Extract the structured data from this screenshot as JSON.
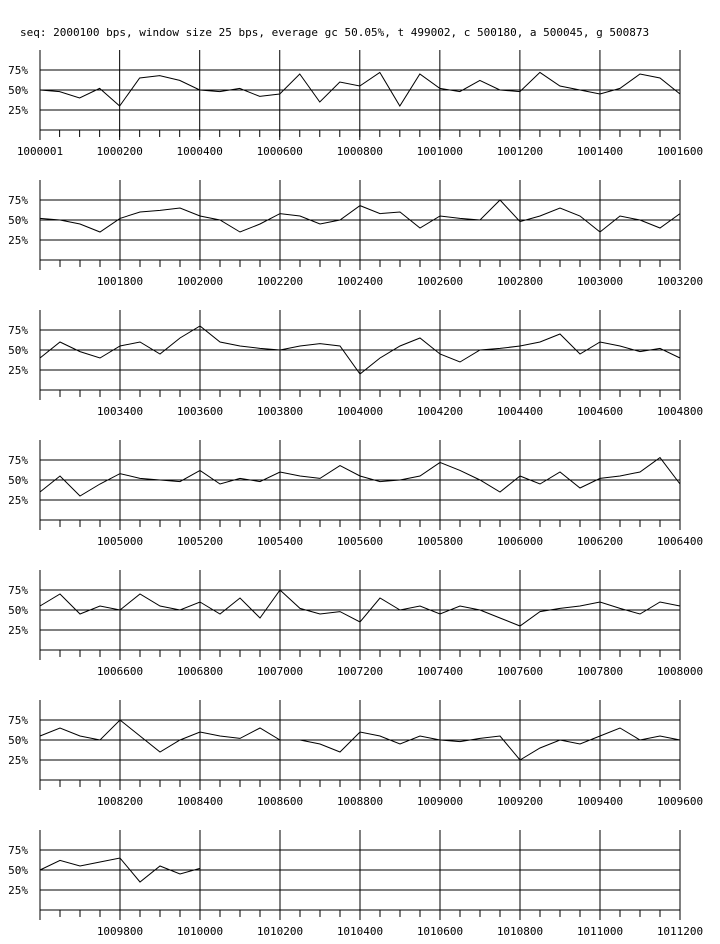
{
  "title": "seq: 2000100 bps, window size 25 bps, everage gc 50.05%, t 499002, c 500180, a 500045, g 500873",
  "chart_data": [
    {
      "type": "line",
      "xlim": [
        1000001,
        1001600
      ],
      "ylim": [
        0,
        100
      ],
      "xticks": [
        1000001,
        1000200,
        1000400,
        1000600,
        1000800,
        1001000,
        1001200,
        1001400,
        1001600
      ],
      "yticks": [
        {
          "value": 25,
          "label": "25%"
        },
        {
          "value": 50,
          "label": "50%"
        },
        {
          "value": 75,
          "label": "75%"
        }
      ],
      "grid": true,
      "series": [
        {
          "color": "#000000",
          "x": [
            1000001,
            1000050,
            1000100,
            1000150,
            1000200,
            1000250,
            1000300,
            1000350,
            1000400,
            1000450,
            1000500,
            1000550,
            1000600,
            1000650,
            1000700,
            1000750,
            1000800,
            1000850,
            1000900,
            1000950,
            1001000,
            1001050,
            1001100,
            1001150,
            1001200,
            1001250,
            1001300,
            1001350,
            1001400,
            1001450,
            1001500,
            1001550,
            1001600
          ],
          "values": [
            50,
            48,
            40,
            52,
            30,
            65,
            68,
            62,
            50,
            48,
            52,
            42,
            45,
            70,
            35,
            60,
            55,
            72,
            30,
            70,
            52,
            48,
            62,
            50,
            48,
            72,
            55,
            50,
            45,
            52,
            70,
            65,
            45
          ]
        }
      ]
    },
    {
      "type": "line",
      "xlim": [
        1001600,
        1003200
      ],
      "ylim": [
        0,
        100
      ],
      "xticks": [
        1001800,
        1002000,
        1002200,
        1002400,
        1002600,
        1002800,
        1003000,
        1003200
      ],
      "yticks": [
        {
          "value": 25,
          "label": "25%"
        },
        {
          "value": 50,
          "label": "50%"
        },
        {
          "value": 75,
          "label": "75%"
        }
      ],
      "grid": true,
      "series": [
        {
          "color": "#000000",
          "x": [
            1001600,
            1001650,
            1001700,
            1001750,
            1001800,
            1001850,
            1001900,
            1001950,
            1002000,
            1002050,
            1002100,
            1002150,
            1002200,
            1002250,
            1002300,
            1002350,
            1002400,
            1002450,
            1002500,
            1002550,
            1002600,
            1002650,
            1002700,
            1002750,
            1002800,
            1002850,
            1002900,
            1002950,
            1003000,
            1003050,
            1003100,
            1003150,
            1003200
          ],
          "values": [
            52,
            50,
            45,
            35,
            52,
            60,
            62,
            65,
            55,
            50,
            35,
            45,
            58,
            55,
            45,
            50,
            68,
            58,
            60,
            40,
            55,
            52,
            50,
            75,
            48,
            55,
            65,
            55,
            35,
            55,
            50,
            40,
            58
          ]
        }
      ]
    },
    {
      "type": "line",
      "xlim": [
        1003200,
        1004800
      ],
      "ylim": [
        0,
        100
      ],
      "xticks": [
        1003400,
        1003600,
        1003800,
        1004000,
        1004200,
        1004400,
        1004600,
        1004800
      ],
      "yticks": [
        {
          "value": 25,
          "label": "25%"
        },
        {
          "value": 50,
          "label": "50%"
        },
        {
          "value": 75,
          "label": "75%"
        }
      ],
      "grid": true,
      "series": [
        {
          "color": "#000000",
          "x": [
            1003200,
            1003250,
            1003300,
            1003350,
            1003400,
            1003450,
            1003500,
            1003550,
            1003600,
            1003650,
            1003700,
            1003750,
            1003800,
            1003850,
            1003900,
            1003950,
            1004000,
            1004050,
            1004100,
            1004150,
            1004200,
            1004250,
            1004300,
            1004350,
            1004400,
            1004450,
            1004500,
            1004550,
            1004600,
            1004650,
            1004700,
            1004750,
            1004800
          ],
          "values": [
            40,
            60,
            48,
            40,
            55,
            60,
            45,
            65,
            80,
            60,
            55,
            52,
            50,
            55,
            58,
            55,
            20,
            40,
            55,
            65,
            45,
            35,
            50,
            52,
            55,
            60,
            70,
            45,
            60,
            55,
            48,
            52,
            40
          ]
        }
      ]
    },
    {
      "type": "line",
      "xlim": [
        1004800,
        1006400
      ],
      "ylim": [
        0,
        100
      ],
      "xticks": [
        1005000,
        1005200,
        1005400,
        1005600,
        1005800,
        1006000,
        1006200,
        1006400
      ],
      "yticks": [
        {
          "value": 25,
          "label": "25%"
        },
        {
          "value": 50,
          "label": "50%"
        },
        {
          "value": 75,
          "label": "75%"
        }
      ],
      "grid": true,
      "series": [
        {
          "color": "#000000",
          "x": [
            1004800,
            1004850,
            1004900,
            1004950,
            1005000,
            1005050,
            1005100,
            1005150,
            1005200,
            1005250,
            1005300,
            1005350,
            1005400,
            1005450,
            1005500,
            1005550,
            1005600,
            1005650,
            1005700,
            1005750,
            1005800,
            1005850,
            1005900,
            1005950,
            1006000,
            1006050,
            1006100,
            1006150,
            1006200,
            1006250,
            1006300,
            1006350,
            1006400
          ],
          "values": [
            35,
            55,
            30,
            45,
            58,
            52,
            50,
            48,
            62,
            45,
            52,
            48,
            60,
            55,
            52,
            68,
            55,
            48,
            50,
            55,
            72,
            62,
            50,
            35,
            55,
            45,
            60,
            40,
            52,
            55,
            60,
            78,
            45
          ]
        }
      ]
    },
    {
      "type": "line",
      "xlim": [
        1006400,
        1008000
      ],
      "ylim": [
        0,
        100
      ],
      "xticks": [
        1006600,
        1006800,
        1007000,
        1007200,
        1007400,
        1007600,
        1007800,
        1008000
      ],
      "yticks": [
        {
          "value": 25,
          "label": "25%"
        },
        {
          "value": 50,
          "label": "50%"
        },
        {
          "value": 75,
          "label": "75%"
        }
      ],
      "grid": true,
      "series": [
        {
          "color": "#000000",
          "x": [
            1006400,
            1006450,
            1006500,
            1006550,
            1006600,
            1006650,
            1006700,
            1006750,
            1006800,
            1006850,
            1006900,
            1006950,
            1007000,
            1007050,
            1007100,
            1007150,
            1007200,
            1007250,
            1007300,
            1007350,
            1007400,
            1007450,
            1007500,
            1007550,
            1007600,
            1007650,
            1007700,
            1007750,
            1007800,
            1007850,
            1007900,
            1007950,
            1008000
          ],
          "values": [
            55,
            70,
            45,
            55,
            50,
            70,
            55,
            50,
            60,
            45,
            65,
            40,
            75,
            52,
            45,
            48,
            35,
            65,
            50,
            55,
            45,
            55,
            50,
            40,
            30,
            48,
            52,
            55,
            60,
            52,
            45,
            60,
            55
          ]
        }
      ]
    },
    {
      "type": "line",
      "xlim": [
        1008000,
        1009600
      ],
      "ylim": [
        0,
        100
      ],
      "xticks": [
        1008200,
        1008400,
        1008600,
        1008800,
        1009000,
        1009200,
        1009400,
        1009600
      ],
      "yticks": [
        {
          "value": 25,
          "label": "25%"
        },
        {
          "value": 50,
          "label": "50%"
        },
        {
          "value": 75,
          "label": "75%"
        }
      ],
      "grid": true,
      "series": [
        {
          "color": "#000000",
          "x": [
            1008000,
            1008050,
            1008100,
            1008150,
            1008200,
            1008250,
            1008300,
            1008350,
            1008400,
            1008450,
            1008500,
            1008550,
            1008600,
            1008650,
            1008700,
            1008750,
            1008800,
            1008850,
            1008900,
            1008950,
            1009000,
            1009050,
            1009100,
            1009150,
            1009200,
            1009250,
            1009300,
            1009350,
            1009400,
            1009450,
            1009500,
            1009550,
            1009600
          ],
          "values": [
            55,
            65,
            55,
            50,
            75,
            55,
            35,
            50,
            60,
            55,
            52,
            65,
            50,
            50,
            45,
            35,
            60,
            55,
            45,
            55,
            50,
            48,
            52,
            55,
            25,
            40,
            50,
            45,
            55,
            65,
            50,
            55,
            50
          ]
        }
      ]
    },
    {
      "type": "line",
      "xlim": [
        1009600,
        1011200
      ],
      "ylim": [
        0,
        100
      ],
      "xticks": [
        1009800,
        1010000,
        1010200,
        1010400,
        1010600,
        1010800,
        1011000,
        1011200
      ],
      "yticks": [
        {
          "value": 25,
          "label": "25%"
        },
        {
          "value": 50,
          "label": "50%"
        },
        {
          "value": 75,
          "label": "75%"
        }
      ],
      "grid": true,
      "series": [
        {
          "color": "#000000",
          "x": [
            1009600,
            1009650,
            1009700,
            1009750,
            1009800,
            1009850,
            1009900,
            1009950,
            1010000
          ],
          "values": [
            50,
            62,
            55,
            60,
            65,
            35,
            55,
            45,
            52
          ]
        }
      ]
    }
  ]
}
